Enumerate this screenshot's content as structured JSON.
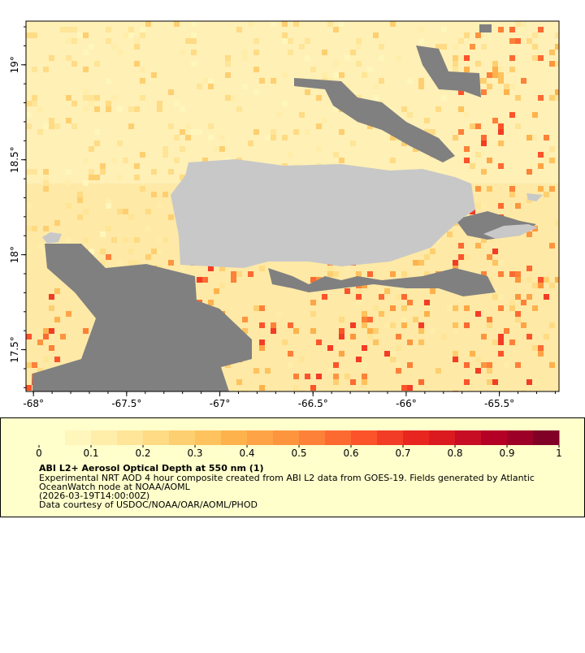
{
  "map": {
    "xlim": [
      -68.04,
      -65.18
    ],
    "ylim": [
      17.28,
      19.23
    ],
    "xticks": [
      {
        "value": -68,
        "label": "-68°"
      },
      {
        "value": -67.5,
        "label": "-67.5°"
      },
      {
        "value": -67,
        "label": "-67°"
      },
      {
        "value": -66.5,
        "label": "-66.5°"
      },
      {
        "value": -66,
        "label": "-66°"
      },
      {
        "value": -65.5,
        "label": "-65.5°"
      }
    ],
    "yticks": [
      {
        "value": 17.5,
        "label": "17.5°"
      },
      {
        "value": 18,
        "label": "18°"
      },
      {
        "value": 18.5,
        "label": "18.5°"
      },
      {
        "value": 19,
        "label": "19°"
      }
    ]
  },
  "colorbar": {
    "lim": [
      0,
      1
    ],
    "ticks": [
      0,
      0.1,
      0.2,
      0.3,
      0.4,
      0.5,
      0.6,
      0.7,
      0.8,
      0.9,
      1
    ],
    "colors": [
      "#ffffcc",
      "#fff6bb",
      "#ffedaa",
      "#fee597",
      "#fedb84",
      "#fecf70",
      "#fec25e",
      "#feb24c",
      "#fea446",
      "#fd953f",
      "#fd8138",
      "#fc6a32",
      "#fc532b",
      "#f33c25",
      "#e8261f",
      "#da1a1f",
      "#c70d23",
      "#b50026",
      "#9d0026",
      "#800026"
    ]
  },
  "caption": {
    "title": "ABI L2+ Aerosol Optical Depth at 550 nm (1)",
    "lines": [
      "Experimental NRT AOD 4 hour composite created from ABI L2 data from GOES-19. Fields generated by Atlantic",
      "OceanWatch node at NOAA/AOML",
      "(2026-03-19T14:00:00Z)",
      "Data courtesy of USDOC/NOAA/OAR/AOML/PHOD"
    ]
  }
}
